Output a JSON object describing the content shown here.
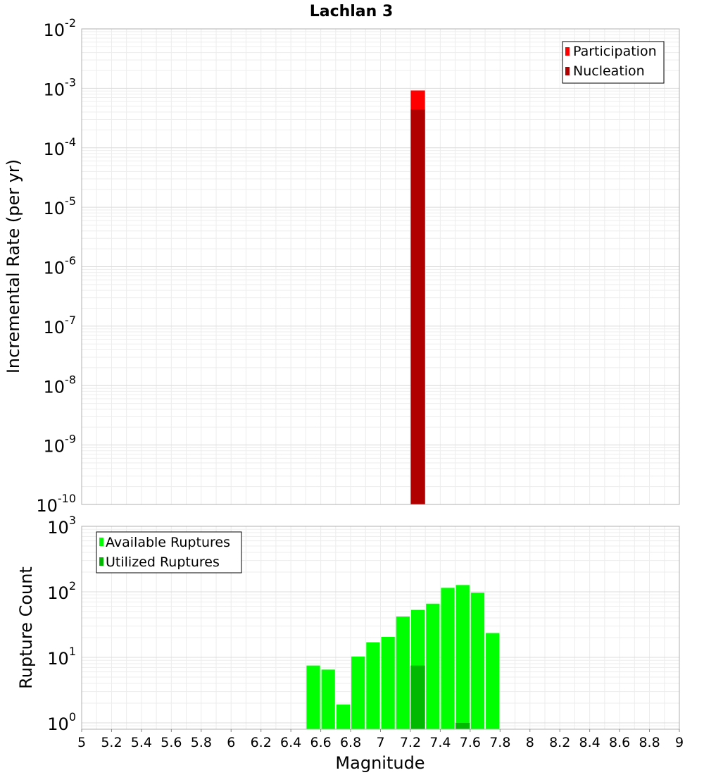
{
  "chart_data": [
    {
      "type": "bar",
      "title": "Lachlan 3",
      "xlabel": "",
      "ylabel": "Incremental Rate (per yr)",
      "yscale": "log",
      "ylim": [
        1e-10,
        0.01
      ],
      "xlim": [
        5,
        9
      ],
      "bin_width": 0.1,
      "y_ticks": [
        {
          "base": "10",
          "exp": "-2"
        },
        {
          "base": "10",
          "exp": "-3"
        },
        {
          "base": "10",
          "exp": "-4"
        },
        {
          "base": "10",
          "exp": "-5"
        },
        {
          "base": "10",
          "exp": "-6"
        },
        {
          "base": "10",
          "exp": "-7"
        },
        {
          "base": "10",
          "exp": "-8"
        },
        {
          "base": "10",
          "exp": "-9"
        },
        {
          "base": "10",
          "exp": "-10"
        }
      ],
      "legend": {
        "position": "top-right"
      },
      "grid": true,
      "series": [
        {
          "name": "Participation",
          "color": "#ff0000",
          "x": [
            7.25
          ],
          "values": [
            0.00092
          ]
        },
        {
          "name": "Nucleation",
          "color": "#b00000",
          "x": [
            7.25
          ],
          "values": [
            0.00044
          ]
        }
      ]
    },
    {
      "type": "bar",
      "title": "",
      "xlabel": "Magnitude",
      "ylabel": "Rupture Count",
      "yscale": "log",
      "ylim": [
        0.8,
        1000
      ],
      "xlim": [
        5,
        9
      ],
      "bin_width": 0.1,
      "y_ticks": [
        {
          "base": "10",
          "exp": "3"
        },
        {
          "base": "10",
          "exp": "2"
        },
        {
          "base": "10",
          "exp": "1"
        },
        {
          "base": "10",
          "exp": "0"
        }
      ],
      "x_ticks": [
        "5",
        "5.2",
        "5.4",
        "5.6",
        "5.8",
        "6",
        "6.2",
        "6.4",
        "6.6",
        "6.8",
        "7",
        "7.2",
        "7.4",
        "7.6",
        "7.8",
        "8",
        "8.2",
        "8.4",
        "8.6",
        "8.8",
        "9"
      ],
      "legend": {
        "position": "top-left"
      },
      "grid": true,
      "series": [
        {
          "name": "Available Ruptures",
          "color": "#00ff00",
          "x": [
            6.55,
            6.65,
            6.75,
            6.85,
            6.95,
            7.05,
            7.15,
            7.25,
            7.35,
            7.45,
            7.55,
            7.65,
            7.75
          ],
          "values": [
            7.5,
            6.5,
            1.9,
            10.3,
            17,
            20.5,
            42,
            53,
            66,
            115,
            127,
            97,
            23.5
          ]
        },
        {
          "name": "Utilized Ruptures",
          "color": "#00b900",
          "x": [
            7.25,
            7.55
          ],
          "values": [
            7.5,
            1
          ]
        }
      ]
    }
  ]
}
